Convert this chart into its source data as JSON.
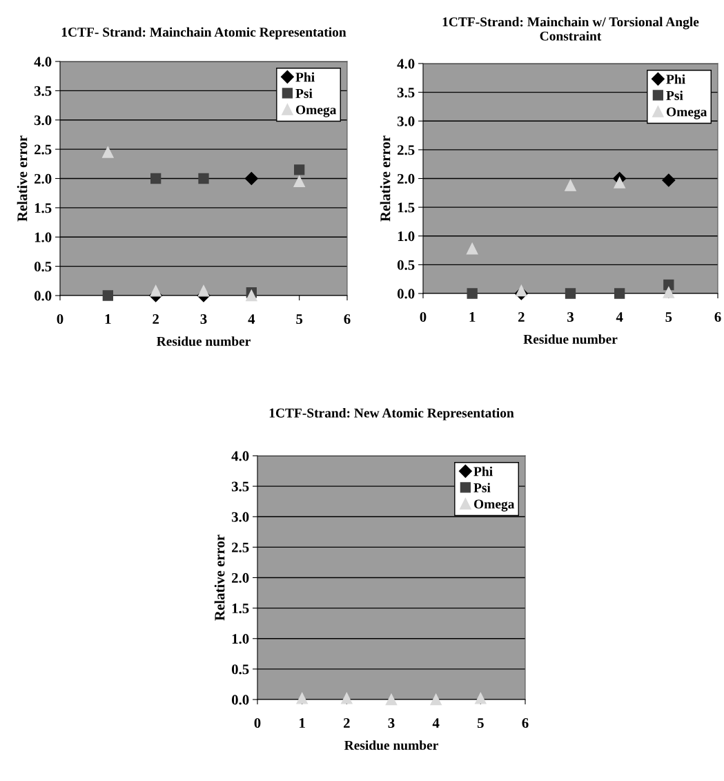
{
  "chart_data": [
    {
      "type": "scatter",
      "title": "1CTF- Strand: Mainchain Atomic Representation",
      "xlabel": "Residue number",
      "ylabel": "Relative error",
      "x": [
        1,
        2,
        3,
        4,
        5
      ],
      "series": [
        {
          "name": "Phi",
          "color": "#000000",
          "marker": "diamond",
          "values": [
            null,
            0.0,
            0.0,
            2.0,
            null
          ]
        },
        {
          "name": "Psi",
          "color": "#404040",
          "marker": "square",
          "values": [
            0.0,
            2.0,
            2.0,
            0.05,
            2.15
          ]
        },
        {
          "name": "Omega",
          "color": "#d9d9d9",
          "marker": "triangle",
          "values": [
            2.45,
            0.08,
            0.08,
            0.0,
            1.95
          ]
        }
      ],
      "xlim": [
        0,
        6
      ],
      "xticks": [
        0,
        1,
        2,
        3,
        4,
        5,
        6
      ],
      "ylim": [
        0,
        4
      ],
      "yticks": [
        {
          "value": 0,
          "label": "0.0"
        },
        0.5,
        {
          "value": 1,
          "label": "1.0"
        },
        1.5,
        {
          "value": 2,
          "label": "2.0"
        },
        2.5,
        {
          "value": 3,
          "label": "3.0"
        },
        3.5,
        {
          "value": 4,
          "label": "4.0"
        }
      ],
      "grid": "y",
      "legend": "top right"
    },
    {
      "type": "scatter",
      "title": "1CTF-Strand: Mainchain w/ Torsional Angle Constraint",
      "xlabel": "Residue number",
      "ylabel": "Relative error",
      "x": [
        1,
        2,
        3,
        4,
        5
      ],
      "series": [
        {
          "name": "Phi",
          "color": "#000000",
          "marker": "diamond",
          "values": [
            null,
            0.0,
            null,
            2.0,
            1.97
          ]
        },
        {
          "name": "Psi",
          "color": "#404040",
          "marker": "square",
          "values": [
            0.0,
            null,
            0.0,
            0.0,
            0.15
          ]
        },
        {
          "name": "Omega",
          "color": "#d9d9d9",
          "marker": "triangle",
          "values": [
            0.78,
            0.05,
            1.88,
            1.93,
            0.02
          ]
        }
      ],
      "xlim": [
        0,
        6
      ],
      "xticks": [
        0,
        1,
        2,
        3,
        4,
        5,
        6
      ],
      "ylim": [
        0,
        4
      ],
      "yticks": [
        {
          "value": 0,
          "label": "0.0"
        },
        0.5,
        {
          "value": 1,
          "label": "1.0"
        },
        1.5,
        {
          "value": 2,
          "label": "2.0"
        },
        2.5,
        {
          "value": 3,
          "label": "3.0"
        },
        3.5,
        {
          "value": 4,
          "label": "4.0"
        }
      ],
      "grid": "y",
      "legend": "top right"
    },
    {
      "type": "scatter",
      "title": "1CTF-Strand: New Atomic Representation",
      "xlabel": "Residue number",
      "ylabel": "Relative error",
      "x": [
        1,
        2,
        3,
        4,
        5
      ],
      "series": [
        {
          "name": "Phi",
          "color": "#000000",
          "marker": "diamond",
          "values": [
            null,
            null,
            null,
            null,
            null
          ]
        },
        {
          "name": "Psi",
          "color": "#404040",
          "marker": "square",
          "values": [
            null,
            null,
            null,
            null,
            null
          ]
        },
        {
          "name": "Omega",
          "color": "#d9d9d9",
          "marker": "triangle",
          "values": [
            0.02,
            0.02,
            0.0,
            0.0,
            0.02
          ]
        }
      ],
      "xlim": [
        0,
        6
      ],
      "xticks": [
        0,
        1,
        2,
        3,
        4,
        5,
        6
      ],
      "ylim": [
        0,
        4
      ],
      "yticks": [
        {
          "value": 0,
          "label": "0.0"
        },
        0.5,
        {
          "value": 1,
          "label": "1.0"
        },
        1.5,
        {
          "value": 2,
          "label": "2.0"
        },
        2.5,
        {
          "value": 3,
          "label": "3.0"
        },
        3.5,
        {
          "value": 4,
          "label": "4.0"
        }
      ],
      "grid": "y",
      "legend": "top right"
    }
  ]
}
